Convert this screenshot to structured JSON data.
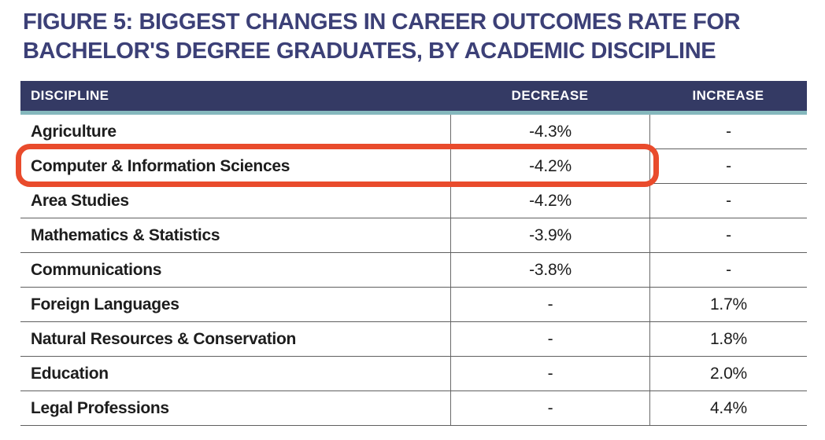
{
  "title": {
    "line1": "FIGURE 5: BIGGEST CHANGES IN CAREER OUTCOMES RATE FOR",
    "line2": "BACHELOR'S DEGREE GRADUATES, BY ACADEMIC DISCIPLINE"
  },
  "table": {
    "columns": [
      "DISCIPLINE",
      "DECREASE",
      "INCREASE"
    ],
    "rows": [
      {
        "discipline": "Agriculture",
        "decrease": "-4.3%",
        "increase": "-",
        "highlighted": false
      },
      {
        "discipline": "Computer & Information Sciences",
        "decrease": "-4.2%",
        "increase": "-",
        "highlighted": true
      },
      {
        "discipline": "Area Studies",
        "decrease": "-4.2%",
        "increase": "-",
        "highlighted": false
      },
      {
        "discipline": "Mathematics & Statistics",
        "decrease": "-3.9%",
        "increase": "-",
        "highlighted": false
      },
      {
        "discipline": "Communications",
        "decrease": "-3.8%",
        "increase": "-",
        "highlighted": false
      },
      {
        "discipline": "Foreign Languages",
        "decrease": "-",
        "increase": "1.7%",
        "highlighted": false
      },
      {
        "discipline": "Natural Resources & Conservation",
        "decrease": "-",
        "increase": "1.8%",
        "highlighted": false
      },
      {
        "discipline": "Education",
        "decrease": "-",
        "increase": "2.0%",
        "highlighted": false
      },
      {
        "discipline": "Legal Professions",
        "decrease": "-",
        "increase": "4.4%",
        "highlighted": false
      }
    ]
  },
  "highlight": {
    "row": "Computer & Information Sciences",
    "color": "#e94b2c"
  },
  "colors": {
    "title_text": "#3c4077",
    "header_background": "#343a64",
    "header_text": "#ffffff",
    "header_accent_teal": "#85b8bd",
    "row_text": "#1d1d1d",
    "grid_line": "#5f5f5f",
    "highlight_red": "#e94b2c"
  },
  "chart_data": {
    "type": "table",
    "title": "FIGURE 5: BIGGEST CHANGES IN CAREER OUTCOMES RATE FOR BACHELOR'S DEGREE GRADUATES, BY ACADEMIC DISCIPLINE",
    "columns": [
      "DISCIPLINE",
      "DECREASE",
      "INCREASE"
    ],
    "rows": [
      [
        "Agriculture",
        "-4.3%",
        "-"
      ],
      [
        "Computer & Information Sciences",
        "-4.2%",
        "-"
      ],
      [
        "Area Studies",
        "-4.2%",
        "-"
      ],
      [
        "Mathematics & Statistics",
        "-3.9%",
        "-"
      ],
      [
        "Communications",
        "-3.8%",
        "-"
      ],
      [
        "Foreign Languages",
        "-",
        "1.7%"
      ],
      [
        "Natural Resources & Conservation",
        "-",
        "1.8%"
      ],
      [
        "Education",
        "-",
        "2.0%"
      ],
      [
        "Legal Professions",
        "-",
        "4.4%"
      ]
    ],
    "decrease_values_pct": [
      -4.3,
      -4.2,
      -4.2,
      -3.9,
      -3.8,
      null,
      null,
      null,
      null
    ],
    "increase_values_pct": [
      null,
      null,
      null,
      null,
      null,
      1.7,
      1.8,
      2.0,
      4.4
    ],
    "annotations": [
      "Red rounded rectangle highlights the 'Computer & Information Sciences' row (discipline and decrease cells)"
    ]
  }
}
